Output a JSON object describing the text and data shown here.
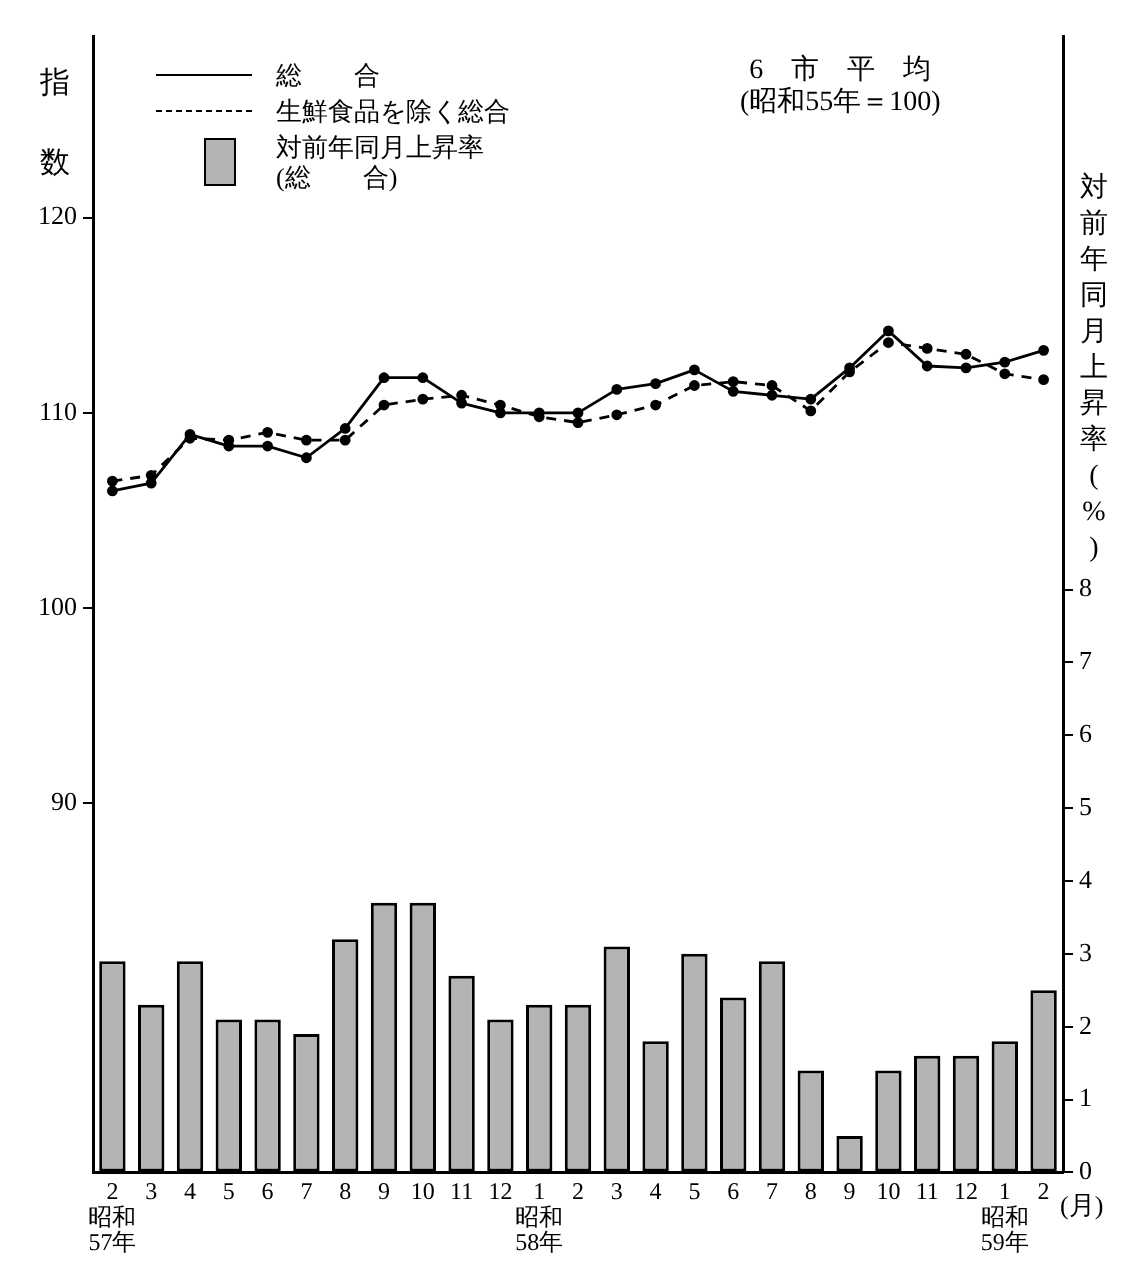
{
  "chart_data": {
    "type": "line",
    "title": "6　市　平　均",
    "subtitle": "(昭和55年＝100)",
    "ylabel": "指数",
    "y2label": "対前年同月上昇率(%)",
    "xlabel": "(月)",
    "categories": [
      "2\n昭和\n57年",
      "3",
      "4",
      "5",
      "6",
      "7",
      "8",
      "9",
      "10",
      "11",
      "12",
      "1\n昭和\n58年",
      "2",
      "3",
      "4",
      "5",
      "6",
      "7",
      "8",
      "9",
      "10",
      "11",
      "12",
      "1\n昭和\n59年",
      "2"
    ],
    "series": [
      {
        "name": "総　　合",
        "axis": "y",
        "color": "#000000",
        "line_style": "solid",
        "values": [
          106.0,
          106.4,
          108.9,
          108.3,
          108.3,
          107.7,
          109.2,
          111.8,
          111.8,
          110.5,
          110.0,
          110.0,
          110.0,
          111.2,
          111.5,
          112.2,
          111.1,
          110.9,
          110.7,
          112.3,
          114.2,
          112.4,
          112.3,
          112.6,
          113.2
        ]
      },
      {
        "name": "生鮮食品を除く総合",
        "axis": "y",
        "color": "#000000",
        "line_style": "dashed",
        "values": [
          106.5,
          106.8,
          108.7,
          108.6,
          109.0,
          108.6,
          108.6,
          110.4,
          110.7,
          110.9,
          110.4,
          109.8,
          109.5,
          109.9,
          110.4,
          111.4,
          111.6,
          111.4,
          110.1,
          112.1,
          113.6,
          113.3,
          113.0,
          112.0,
          111.7
        ]
      },
      {
        "name": "対前年同月上昇率\n(総　　合)",
        "type": "bar",
        "axis": "y2",
        "color": "#b4b4b4",
        "values": [
          2.9,
          2.3,
          2.9,
          2.1,
          2.1,
          1.9,
          3.2,
          3.7,
          3.7,
          2.7,
          2.1,
          2.3,
          2.3,
          3.1,
          1.8,
          3.0,
          2.4,
          2.9,
          1.4,
          0.5,
          1.4,
          1.6,
          1.6,
          1.8,
          2.5
        ]
      }
    ],
    "ylim": [
      71.1,
      129.3
    ],
    "yticks": [
      90,
      100,
      110,
      120
    ],
    "y2lim": [
      0,
      15.6
    ],
    "y2ticks": [
      0,
      1,
      2,
      3,
      4,
      5,
      6,
      7,
      8
    ],
    "grid": false,
    "legend": "top left",
    "marker": "circle"
  }
}
